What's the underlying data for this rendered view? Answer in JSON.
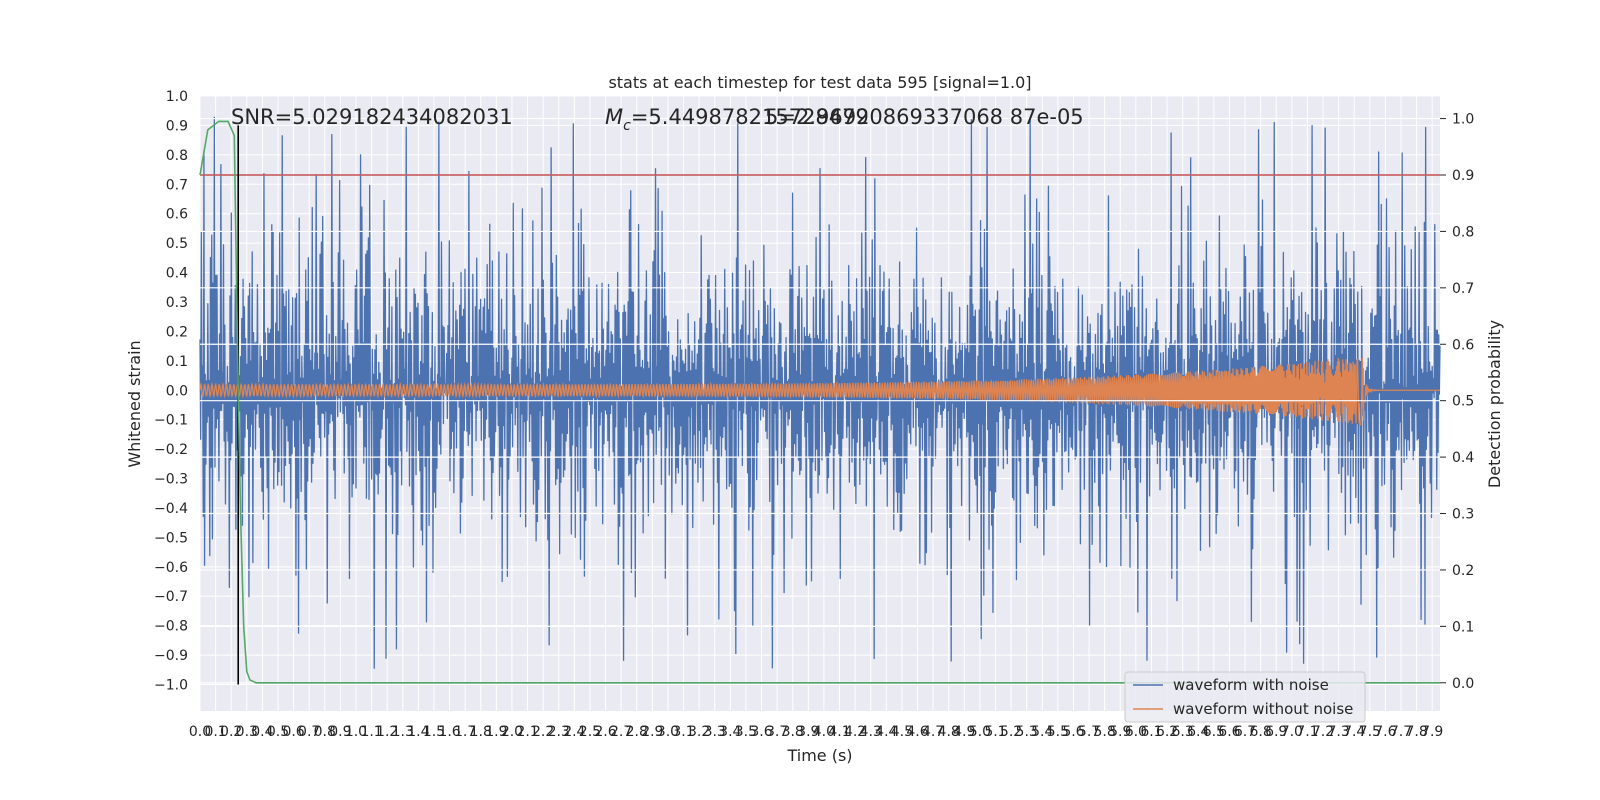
{
  "chart_data": {
    "type": "line",
    "title": "stats at each timestep for test data 595 [signal=1.0]",
    "xlabel": "Time (s)",
    "ylabel": "Whitened strain",
    "y2label": "Detection probability",
    "xlim": [
      0.0,
      7.95
    ],
    "ylim": [
      -1.09,
      1.0
    ],
    "y2lim": [
      -0.05,
      1.04
    ],
    "grid": true,
    "x_ticks": [
      "0.0",
      "0.1",
      "0.2",
      "0.3",
      "0.4",
      "0.5",
      "0.6",
      "0.7",
      "0.8",
      "0.9",
      "1.0",
      "1.1",
      "1.2",
      "1.3",
      "1.4",
      "1.5",
      "1.6",
      "1.7",
      "1.8",
      "1.9",
      "2.0",
      "2.1",
      "2.2",
      "2.3",
      "2.4",
      "2.5",
      "2.6",
      "2.7",
      "2.8",
      "2.9",
      "3.0",
      "3.1",
      "3.2",
      "3.3",
      "3.4",
      "3.5",
      "3.6",
      "3.7",
      "3.8",
      "3.9",
      "4.0",
      "4.1",
      "4.2",
      "4.3",
      "4.4",
      "4.5",
      "4.6",
      "4.7",
      "4.8",
      "4.9",
      "5.0",
      "5.1",
      "5.2",
      "5.3",
      "5.4",
      "5.5",
      "5.6",
      "5.7",
      "5.8",
      "5.9",
      "6.0",
      "6.1",
      "6.2",
      "6.3",
      "6.4",
      "6.5",
      "6.6",
      "6.7",
      "6.8",
      "6.9",
      "7.0",
      "7.1",
      "7.2",
      "7.3",
      "7.4",
      "7.5",
      "7.6",
      "7.7",
      "7.8",
      "7.9"
    ],
    "y_ticks": [
      "1.0",
      "0.9",
      "0.8",
      "0.7",
      "0.6",
      "0.5",
      "0.4",
      "0.3",
      "0.2",
      "0.1",
      "0.0",
      "−0.1",
      "−0.2",
      "−0.3",
      "−0.4",
      "−0.5",
      "−0.6",
      "−0.7",
      "−0.8",
      "−0.9",
      "−1.0"
    ],
    "y2_ticks": [
      "1.0",
      "0.9",
      "0.8",
      "0.7",
      "0.6",
      "0.5",
      "0.4",
      "0.3",
      "0.2",
      "0.1",
      "0.0"
    ],
    "annotations": {
      "snr": "SNR=5.029182434082031",
      "mc_symbol": "M",
      "mc_subscript": "c",
      "mc_value": "=5.449878215728479",
      "overlap": "5=2.96920869337068 87e-05"
    },
    "series": [
      {
        "name": "waveform with noise",
        "color": "#4c72b0",
        "axis": "left",
        "amplitude_typical": 0.45,
        "amplitude_peak": 1.0
      },
      {
        "name": "waveform without noise",
        "color": "#dd8452",
        "axis": "left",
        "chirp_start_x": 0.0,
        "merger_x": 7.47,
        "amplitude_start": 0.02,
        "amplitude_merger": 0.12
      },
      {
        "name": "detection probability",
        "color": "#55a868",
        "axis": "right",
        "x": [
          0.0,
          0.05,
          0.12,
          0.18,
          0.22,
          0.24,
          0.26,
          0.28,
          0.3,
          0.32,
          0.36,
          7.95
        ],
        "values": [
          0.9,
          0.98,
          0.995,
          0.995,
          0.97,
          0.6,
          0.3,
          0.1,
          0.02,
          0.005,
          0.0,
          0.0
        ]
      }
    ],
    "hlines": [
      {
        "axis": "right",
        "y": 0.9,
        "color": "#c44e52"
      }
    ],
    "vlines": [
      {
        "axis": "left",
        "x": 0.245,
        "ymin": -1.0,
        "ymax": 0.9,
        "color": "#000000"
      }
    ],
    "legend": {
      "placement": "lower-right",
      "entries": [
        "waveform with noise",
        "waveform without noise"
      ]
    }
  }
}
